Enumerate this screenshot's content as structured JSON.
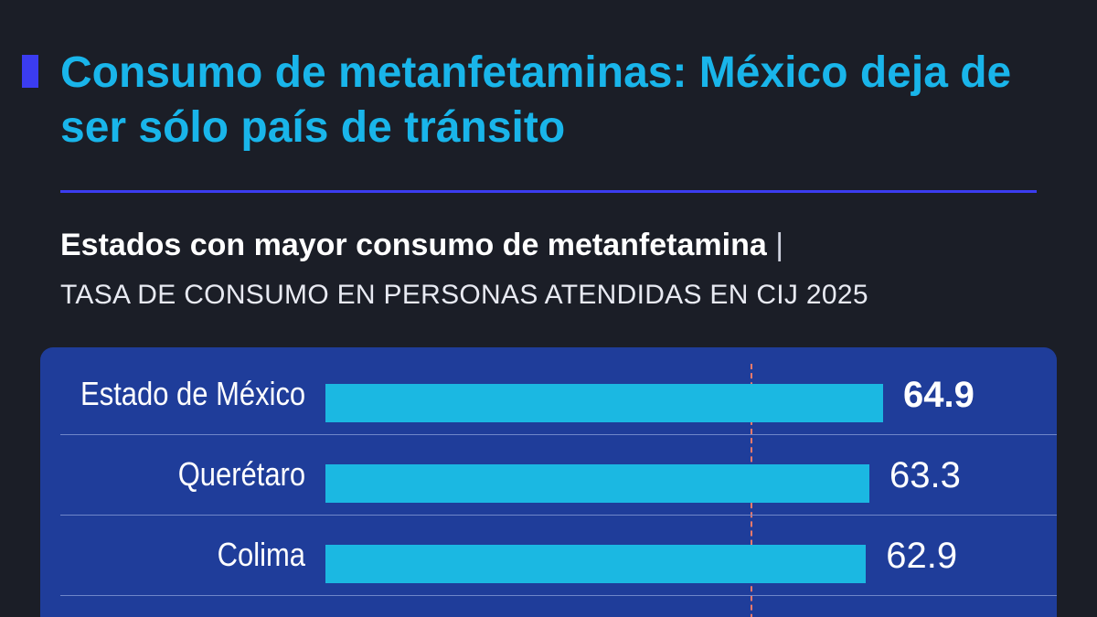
{
  "header": {
    "title": "Consumo de metanfetaminas: México deja de ser sólo país de tránsito",
    "subtitle": "Estados con mayor consumo de metanfetamina",
    "separator": "|",
    "caption": "TASA DE CONSUMO EN PERSONAS ATENDIDAS EN CIJ 2025"
  },
  "colors": {
    "background": "#1b1e27",
    "title": "#19b5ea",
    "accent": "#3b3cf0",
    "panel": "#1f3d9a",
    "bar": "#1bb8e2",
    "reference_line": "#f07a6a"
  },
  "chart_data": {
    "type": "bar",
    "orientation": "horizontal",
    "title": "Estados con mayor consumo de metanfetamina",
    "subtitle": "TASA DE CONSUMO EN PERSONAS ATENDIDAS EN CIJ 2025",
    "categories": [
      "Estado de México",
      "Querétaro",
      "Colima"
    ],
    "values": [
      64.9,
      63.3,
      62.9
    ],
    "value_labels": [
      "64.9",
      "63.3",
      "62.9"
    ],
    "highlight_index": 0,
    "xlim": [
      0,
      100
    ],
    "reference_line": 49.5,
    "grid": false,
    "legend": "none"
  }
}
